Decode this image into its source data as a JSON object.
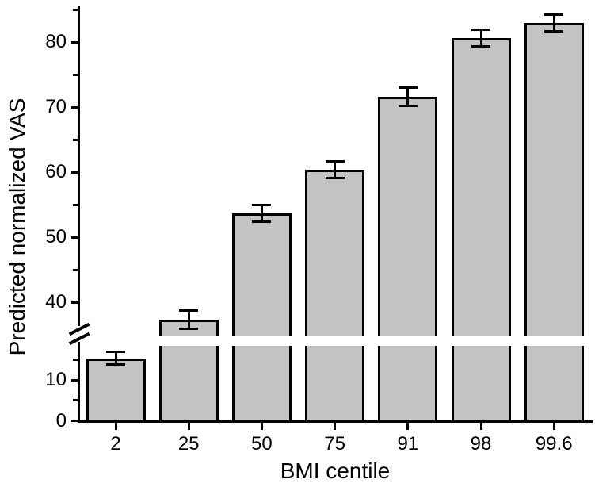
{
  "chart_data": {
    "type": "bar",
    "title": "",
    "xlabel": "BMI centile",
    "ylabel": "Predicted normalized VAS",
    "categories": [
      "2",
      "25",
      "50",
      "75",
      "91",
      "98",
      "99.6"
    ],
    "series": [
      {
        "name": "Predicted normalized VAS",
        "values": [
          15.3,
          37.3,
          53.7,
          60.4,
          71.6,
          80.6,
          82.9
        ],
        "errors": [
          1.5,
          1.4,
          1.3,
          1.3,
          1.4,
          1.3,
          1.3
        ]
      }
    ],
    "y_axis": {
      "major_ticks": [
        0,
        10,
        40,
        50,
        60,
        70,
        80
      ],
      "minor_ticks": [
        5,
        15,
        45,
        55,
        65,
        75,
        85
      ],
      "axis_break": {
        "from": 18.5,
        "to": 35
      },
      "ylim_lower_segment": [
        0,
        18.5
      ],
      "ylim_upper_segment": [
        35,
        85.5
      ]
    },
    "x_axis": {
      "tick_labels": [
        "2",
        "25",
        "50",
        "75",
        "91",
        "98",
        "99.6"
      ]
    },
    "legend": null,
    "grid": false,
    "colors": {
      "bar_fill": "#c3c3c3",
      "bar_border": "#000000",
      "axis": "#000000",
      "text": "#000000",
      "background": "#ffffff"
    }
  }
}
